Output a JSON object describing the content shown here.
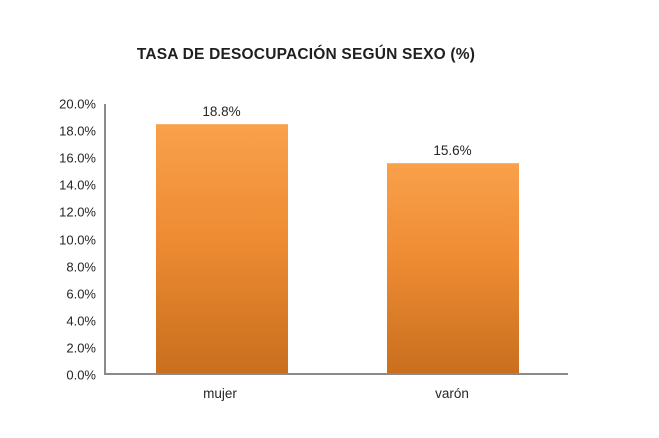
{
  "chart": {
    "title": "TASA DE DESOCUPACIÓN SEGÚN SEXO (%)"
  },
  "chart_data": {
    "type": "bar",
    "title": "TASA DE DESOCUPACIÓN SEGÚN SEXO (%)",
    "categories": [
      "mujer",
      "varón"
    ],
    "values": [
      18.8,
      15.6
    ],
    "value_labels": [
      "18.8%",
      "15.6%"
    ],
    "xlabel": "",
    "ylabel": "",
    "ylim": [
      0,
      20
    ],
    "y_tick_step": 2,
    "y_tick_labels": [
      "0.0%",
      "2.0%",
      "4.0%",
      "6.0%",
      "8.0%",
      "10.0%",
      "12.0%",
      "14.0%",
      "16.0%",
      "18.0%",
      "20.0%"
    ],
    "grid": false,
    "legend": "none",
    "colors": {
      "bar_gradient_top": "#f9a04b",
      "bar_gradient_bottom": "#c96f1e",
      "axis_line": "#8a8a8a",
      "label_text": "#262626",
      "title_text": "#1f1f1f",
      "background": "#ffffff"
    }
  }
}
